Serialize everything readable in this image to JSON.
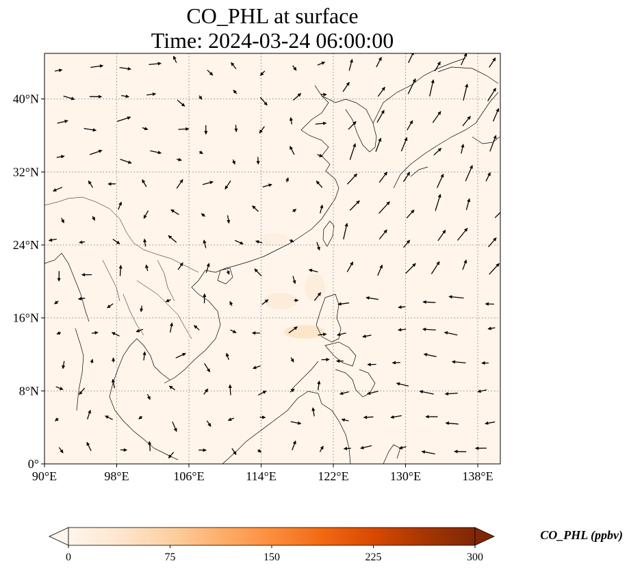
{
  "title": {
    "line1": "CO_PHL at surface",
    "line2": "Time: 2024-03-24 06:00:00"
  },
  "map": {
    "projection": "PlateCarree",
    "lon_range": [
      90,
      140.5
    ],
    "lat_range": [
      0,
      45
    ],
    "lon_ticks": [
      {
        "value": 90,
        "label": "90°E"
      },
      {
        "value": 98,
        "label": "98°E"
      },
      {
        "value": 106,
        "label": "106°E"
      },
      {
        "value": 114,
        "label": "114°E"
      },
      {
        "value": 122,
        "label": "122°E"
      },
      {
        "value": 130,
        "label": "130°E"
      },
      {
        "value": 138,
        "label": "138°E"
      }
    ],
    "lat_ticks": [
      {
        "value": 0,
        "label": "0°"
      },
      {
        "value": 8,
        "label": "8°N"
      },
      {
        "value": 16,
        "label": "16°N"
      },
      {
        "value": 24,
        "label": "24°N"
      },
      {
        "value": 32,
        "label": "32°N"
      },
      {
        "value": 40,
        "label": "40°N"
      }
    ],
    "gridlines": "dotted",
    "background_color": "#fff5eb",
    "coastline_color": "#000000",
    "wind_vectors": "black arrows"
  },
  "colorbar": {
    "label": "CO_PHL (ppbv)",
    "min": 0,
    "max": 300,
    "ticks": [
      {
        "value": 0,
        "label": "0"
      },
      {
        "value": 75,
        "label": "75"
      },
      {
        "value": 150,
        "label": "150"
      },
      {
        "value": 225,
        "label": "225"
      },
      {
        "value": 300,
        "label": "300"
      }
    ],
    "extend": "both",
    "colormap": [
      "#fff5eb",
      "#fee6ce",
      "#fdd0a2",
      "#fdae6b",
      "#fd8d3c",
      "#f16913",
      "#d94801",
      "#a63603",
      "#7f2704"
    ]
  }
}
